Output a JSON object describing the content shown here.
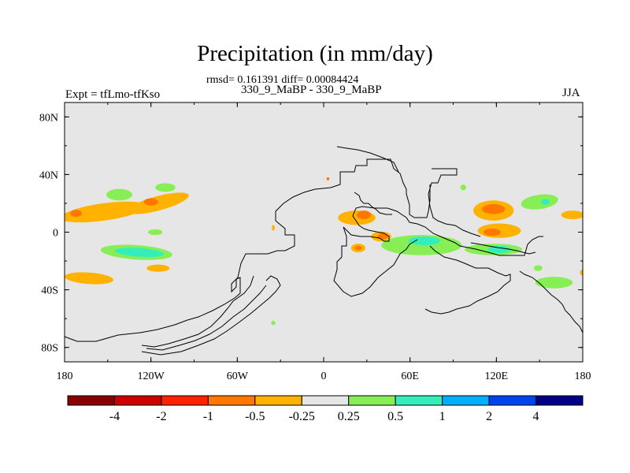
{
  "chart_data": {
    "type": "heatmap",
    "title": "Precipitation (in mm/day)",
    "stats_text": "rmsd= 0.161391 diff= 0.00084424",
    "case_text": "330_9_MaBP - 330_9_MaBP",
    "left_label": "Expt = tfLmo-tfKso",
    "right_label": "JJA",
    "x_ticks": [
      {
        "value": -180,
        "label": "180"
      },
      {
        "value": -120,
        "label": "120W"
      },
      {
        "value": -60,
        "label": "60W"
      },
      {
        "value": 0,
        "label": "0"
      },
      {
        "value": 60,
        "label": "60E"
      },
      {
        "value": 120,
        "label": "120E"
      },
      {
        "value": 180,
        "label": "180"
      }
    ],
    "y_ticks": [
      {
        "value": 80,
        "label": "80N"
      },
      {
        "value": 40,
        "label": "40N"
      },
      {
        "value": 0,
        "label": "0"
      },
      {
        "value": -40,
        "label": "40S"
      },
      {
        "value": -80,
        "label": "80S"
      }
    ],
    "xlim": [
      -180,
      180
    ],
    "ylim": [
      -90,
      90
    ],
    "background_color": "#e6e6e6",
    "colorbar": {
      "colors": [
        "#8b0000",
        "#cc0000",
        "#ff2200",
        "#ff7700",
        "#ffb300",
        "#e6e6e6",
        "#88ee55",
        "#33eebb",
        "#00b0ff",
        "#0044ee",
        "#000088"
      ],
      "labels": [
        "-4",
        "-2",
        "-1",
        "-0.5",
        "-0.25",
        "0.25",
        "0.5",
        "1",
        "2",
        "4"
      ]
    },
    "anomalies": [
      {
        "name": "pacific-n-orange-band",
        "level": "-0.25",
        "lon": -153,
        "lat": 14,
        "rlon": 30,
        "rlat": 6,
        "rot": -8
      },
      {
        "name": "pacific-n-orange-band-2",
        "level": "-0.25",
        "lon": -115,
        "lat": 20,
        "rlon": 22,
        "rlat": 5,
        "rot": -15
      },
      {
        "name": "pacific-n-red-1",
        "level": "-0.5",
        "lon": -172,
        "lat": 13,
        "rlon": 4,
        "rlat": 2.5,
        "rot": 0
      },
      {
        "name": "pacific-n-red-2",
        "level": "-0.5",
        "lon": -120,
        "lat": 21,
        "rlon": 5,
        "rlat": 2.5,
        "rot": 0
      },
      {
        "name": "pacific-n-green-1",
        "level": "0.25",
        "lon": -142,
        "lat": 26,
        "rlon": 9,
        "rlat": 4,
        "rot": 0
      },
      {
        "name": "pacific-n-green-2",
        "level": "0.25",
        "lon": -110,
        "lat": 31,
        "rlon": 7,
        "rlat": 3,
        "rot": 0
      },
      {
        "name": "pacific-s-orange",
        "level": "-0.25",
        "lon": -163,
        "lat": -32,
        "rlon": 17,
        "rlat": 4,
        "rot": 4
      },
      {
        "name": "pacific-s-green",
        "level": "0.25",
        "lon": -130,
        "lat": -14,
        "rlon": 25,
        "rlat": 5,
        "rot": 4
      },
      {
        "name": "pacific-s-cyan",
        "level": "0.5",
        "lon": -128,
        "lat": -14,
        "rlon": 17,
        "rlat": 3,
        "rot": 4
      },
      {
        "name": "pacific-s-orange-2",
        "level": "-0.25",
        "lon": -115,
        "lat": -25,
        "rlon": 8,
        "rlat": 2.5,
        "rot": 0
      },
      {
        "name": "africa-orange",
        "level": "-0.25",
        "lon": 23,
        "lat": 10,
        "rlon": 13,
        "rlat": 5,
        "rot": 0
      },
      {
        "name": "africa-red",
        "level": "-0.5",
        "lon": 28,
        "lat": 12,
        "rlon": 5,
        "rlat": 3,
        "rot": 0
      },
      {
        "name": "africa-orange-2",
        "level": "-0.25",
        "lon": 40,
        "lat": -3,
        "rlon": 7,
        "rlat": 3.5,
        "rot": 0
      },
      {
        "name": "africa-red-2",
        "level": "-0.5",
        "lon": 41,
        "lat": -3,
        "rlon": 3.5,
        "rlat": 2,
        "rot": 0
      },
      {
        "name": "africa-orange-3",
        "level": "-0.25",
        "lon": 24,
        "lat": -11,
        "rlon": 5,
        "rlat": 3,
        "rot": 0
      },
      {
        "name": "africa-red-3",
        "level": "-0.5",
        "lon": 24,
        "lat": -11,
        "rlon": 2.5,
        "rlat": 1.5,
        "rot": 0
      },
      {
        "name": "indian-green",
        "level": "0.25",
        "lon": 68,
        "lat": -9,
        "rlon": 28,
        "rlat": 7,
        "rot": 0
      },
      {
        "name": "indian-cyan",
        "level": "0.5",
        "lon": 70,
        "lat": -6,
        "rlon": 11,
        "rlat": 3,
        "rot": 0
      },
      {
        "name": "maritime-green",
        "level": "0.25",
        "lon": 118,
        "lat": -12,
        "rlon": 20,
        "rlat": 4,
        "rot": 0
      },
      {
        "name": "maritime-cyan",
        "level": "0.5",
        "lon": 122,
        "lat": -12,
        "rlon": 8,
        "rlat": 2.5,
        "rot": 0
      },
      {
        "name": "asia-orange",
        "level": "-0.25",
        "lon": 118,
        "lat": 15,
        "rlon": 14,
        "rlat": 7,
        "rot": 0
      },
      {
        "name": "asia-red",
        "level": "-0.5",
        "lon": 118,
        "lat": 16,
        "rlon": 8,
        "rlat": 3.5,
        "rot": 0
      },
      {
        "name": "asia-orange-2",
        "level": "-0.25",
        "lon": 122,
        "lat": 1,
        "rlon": 15,
        "rlat": 5,
        "rot": 0
      },
      {
        "name": "asia-red-2",
        "level": "-0.5",
        "lon": 117,
        "lat": 0,
        "rlon": 6,
        "rlat": 2.5,
        "rot": 0
      },
      {
        "name": "westpac-green",
        "level": "0.25",
        "lon": 150,
        "lat": 21,
        "rlon": 13,
        "rlat": 5,
        "rot": -8
      },
      {
        "name": "westpac-cyan",
        "level": "0.5",
        "lon": 154,
        "lat": 21,
        "rlon": 3,
        "rlat": 2,
        "rot": 0
      },
      {
        "name": "westpac-orange",
        "level": "-0.25",
        "lon": 173,
        "lat": 12,
        "rlon": 8,
        "rlat": 3,
        "rot": 0
      },
      {
        "name": "subtrop-green",
        "level": "0.25",
        "lon": 160,
        "lat": -35,
        "rlon": 13,
        "rlat": 4,
        "rot": 0
      },
      {
        "name": "tiny-green-1",
        "level": "0.25",
        "lon": -117,
        "lat": 0,
        "rlon": 5,
        "rlat": 2,
        "rot": 0
      },
      {
        "name": "tiny-green-2",
        "level": "0.25",
        "lon": 97,
        "lat": 31,
        "rlon": 2,
        "rlat": 2,
        "rot": 0
      },
      {
        "name": "tiny-green-3",
        "level": "0.25",
        "lon": 149,
        "lat": -25,
        "rlon": 3,
        "rlat": 2,
        "rot": 0
      },
      {
        "name": "tiny-green-4",
        "level": "0.25",
        "lon": -35,
        "lat": -63,
        "rlon": 1.5,
        "rlat": 1.5,
        "rot": 0
      },
      {
        "name": "tiny-orange-1",
        "level": "-0.25",
        "lon": -35,
        "lat": 3,
        "rlon": 1,
        "rlat": 2,
        "rot": 0
      },
      {
        "name": "tiny-orange-2",
        "level": "-0.25",
        "lon": 180,
        "lat": -28,
        "rlon": 2,
        "rlat": 2,
        "rot": 0
      },
      {
        "name": "tiny-red-4",
        "level": "-0.5",
        "lon": 3,
        "lat": 37,
        "rlon": 1,
        "rlat": 1,
        "rot": 0
      }
    ]
  }
}
